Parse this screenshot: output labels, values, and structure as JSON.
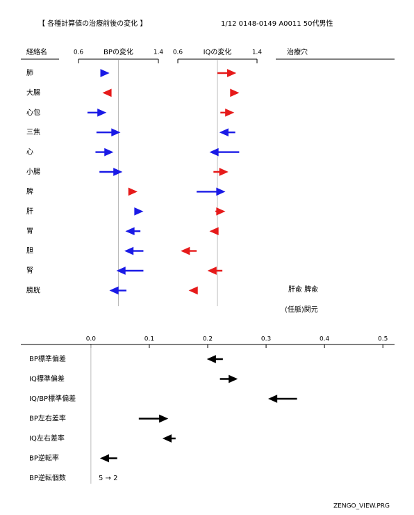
{
  "header": {
    "title": "【 各種計算値の治療前後の変化 】",
    "info": "1/12  0148-0149 A0011  50代男性"
  },
  "footer": "ZENGO_VIEW.PRG",
  "chart_data": [
    {
      "type": "arrow",
      "category_header": "経絡名",
      "categories": [
        "肺",
        "大腸",
        "心包",
        "三焦",
        "心",
        "小腸",
        "脾",
        "肝",
        "胃",
        "胆",
        "腎",
        "膀胱"
      ],
      "panels": [
        {
          "title": "BPの変化",
          "xlim": [
            0.6,
            1.4
          ],
          "xticks": [
            0.6,
            1.4
          ],
          "ref": 1,
          "start": [
            0.82,
            0.93,
            0.69,
            0.78,
            0.77,
            0.81,
            1.11,
            1.18,
            1.22,
            1.25,
            1.25,
            1.08
          ],
          "end": [
            0.89,
            0.86,
            0.86,
            1.0,
            0.93,
            1.02,
            1.17,
            1.23,
            1.09,
            1.08,
            1.0,
            0.93
          ],
          "colors": [
            "#1a1ae6",
            "#e61a1a",
            "#1a1ae6",
            "#1a1ae6",
            "#1a1ae6",
            "#1a1ae6",
            "#e61a1a",
            "#1a1ae6",
            "#1a1ae6",
            "#1a1ae6",
            "#1a1ae6",
            "#1a1ae6"
          ]
        },
        {
          "title": "IQの変化",
          "xlim": [
            0.6,
            1.4
          ],
          "xticks": [
            0.6,
            1.4
          ],
          "ref": 1,
          "start": [
            1.0,
            1.14,
            1.03,
            1.18,
            1.22,
            0.96,
            0.79,
            0.98,
            1.01,
            0.79,
            1.05,
            0.79
          ],
          "end": [
            1.17,
            1.2,
            1.15,
            1.04,
            0.94,
            1.09,
            1.06,
            1.06,
            0.94,
            0.65,
            0.92,
            0.73
          ],
          "colors": [
            "#e61a1a",
            "#e61a1a",
            "#e61a1a",
            "#1a1ae6",
            "#1a1ae6",
            "#e61a1a",
            "#1a1ae6",
            "#e61a1a",
            "#e61a1a",
            "#e61a1a",
            "#e61a1a",
            "#e61a1a"
          ]
        }
      ],
      "note_header": "治療穴",
      "notes": [
        "肝兪 脾兪",
        "(任脈)関元"
      ]
    },
    {
      "type": "arrow",
      "categories": [
        "BP標準偏差",
        "IQ標準偏差",
        "IQ/BP標準偏差",
        "BP左右差率",
        "IQ左右差率",
        "BP逆転率"
      ],
      "xlim": [
        -0.12,
        0.52
      ],
      "xticks": [
        {
          "value": 0,
          "label": "0.0"
        },
        0.1,
        0.2,
        0.3,
        0.4,
        0.5
      ],
      "ref": 0,
      "start": [
        0.226,
        0.221,
        0.353,
        0.082,
        0.145,
        0.045
      ],
      "end": [
        0.202,
        0.248,
        0.307,
        0.129,
        0.126,
        0.019
      ],
      "color": "#000000",
      "extra_rows": [
        {
          "label": "BP逆転個数",
          "value": "5 → 2"
        }
      ]
    }
  ]
}
